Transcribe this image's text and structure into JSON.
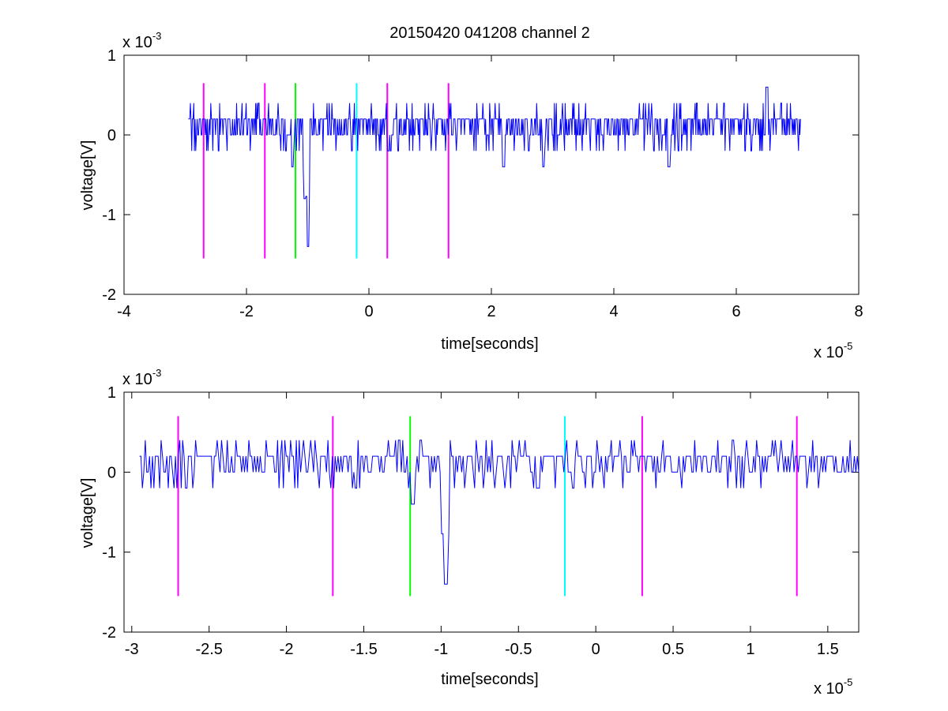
{
  "figure": {
    "title": "20150420 041208 channel 2"
  },
  "colors": {
    "signal": "#0000ff",
    "magenta": "#ff00ff",
    "green": "#00ff00",
    "cyan": "#00ffff",
    "axis": "#000000"
  },
  "chart_data": [
    {
      "type": "line",
      "panel": "top",
      "title": "20150420 041208 channel 2",
      "xlabel": "time[seconds]",
      "ylabel": "voltage[V]",
      "x_exponent_label": "x 10",
      "x_exponent": "-5",
      "y_exponent_label": "x 10",
      "y_exponent": "-3",
      "xlim": [
        -4,
        8
      ],
      "ylim": [
        -2,
        1
      ],
      "xticks": [
        -4,
        -2,
        0,
        2,
        4,
        6,
        8
      ],
      "xtick_labels": [
        "-4",
        "-2",
        "0",
        "2",
        "4",
        "6",
        "8"
      ],
      "yticks": [
        -2,
        -1,
        0,
        1
      ],
      "ytick_labels": [
        "-2",
        "-1",
        "0",
        "1"
      ],
      "grid": false,
      "series": [
        {
          "color": "#0000ff",
          "x_range": [
            -2.95,
            7.05
          ],
          "baseline": 0.1,
          "spikes": [
            {
              "x": -1.0,
              "y": -1.4
            },
            {
              "x": -1.05,
              "y": -0.8
            },
            {
              "x": -1.25,
              "y": -0.4
            },
            {
              "x": 2.2,
              "y": -0.4
            },
            {
              "x": 2.85,
              "y": -0.4
            },
            {
              "x": 4.9,
              "y": -0.4
            },
            {
              "x": 6.5,
              "y": 0.6
            }
          ]
        }
      ],
      "vlines": [
        {
          "x": -2.7,
          "y": [
            -1.55,
            0.65
          ],
          "color": "#ff00ff"
        },
        {
          "x": -1.7,
          "y": [
            -1.55,
            0.65
          ],
          "color": "#ff00ff"
        },
        {
          "x": -1.2,
          "y": [
            -1.55,
            0.65
          ],
          "color": "#00ff00"
        },
        {
          "x": -0.2,
          "y": [
            -1.55,
            0.65
          ],
          "color": "#00ffff"
        },
        {
          "x": 0.3,
          "y": [
            -1.55,
            0.65
          ],
          "color": "#ff00ff"
        },
        {
          "x": 1.3,
          "y": [
            -1.55,
            0.65
          ],
          "color": "#ff00ff"
        }
      ]
    },
    {
      "type": "line",
      "panel": "bottom",
      "xlabel": "time[seconds]",
      "ylabel": "voltage[V]",
      "x_exponent_label": "x 10",
      "x_exponent": "-5",
      "y_exponent_label": "x 10",
      "y_exponent": "-3",
      "xlim": [
        -3.05,
        1.7
      ],
      "ylim": [
        -2,
        1
      ],
      "xticks": [
        -3,
        -2.5,
        -2,
        -1.5,
        -1,
        -0.5,
        0,
        0.5,
        1,
        1.5
      ],
      "xtick_labels": [
        "-3",
        "-2.5",
        "-2",
        "-1.5",
        "-1",
        "-0.5",
        "0",
        "0.5",
        "1",
        "1.5"
      ],
      "yticks": [
        -2,
        -1,
        0,
        1
      ],
      "ytick_labels": [
        "-2",
        "-1",
        "0",
        "1"
      ],
      "grid": false,
      "series": [
        {
          "color": "#0000ff",
          "x_range": [
            -2.95,
            1.7
          ],
          "baseline": 0.1,
          "spikes": [
            {
              "x": -0.97,
              "y": -1.4
            },
            {
              "x": -1.18,
              "y": -0.4
            }
          ]
        }
      ],
      "vlines": [
        {
          "x": -2.7,
          "y": [
            -1.55,
            0.7
          ],
          "color": "#ff00ff"
        },
        {
          "x": -1.7,
          "y": [
            -1.55,
            0.7
          ],
          "color": "#ff00ff"
        },
        {
          "x": -1.2,
          "y": [
            -1.55,
            0.7
          ],
          "color": "#00ff00"
        },
        {
          "x": -0.2,
          "y": [
            -1.55,
            0.7
          ],
          "color": "#00ffff"
        },
        {
          "x": 0.3,
          "y": [
            -1.55,
            0.7
          ],
          "color": "#ff00ff"
        },
        {
          "x": 1.3,
          "y": [
            -1.55,
            0.7
          ],
          "color": "#ff00ff"
        }
      ]
    }
  ]
}
